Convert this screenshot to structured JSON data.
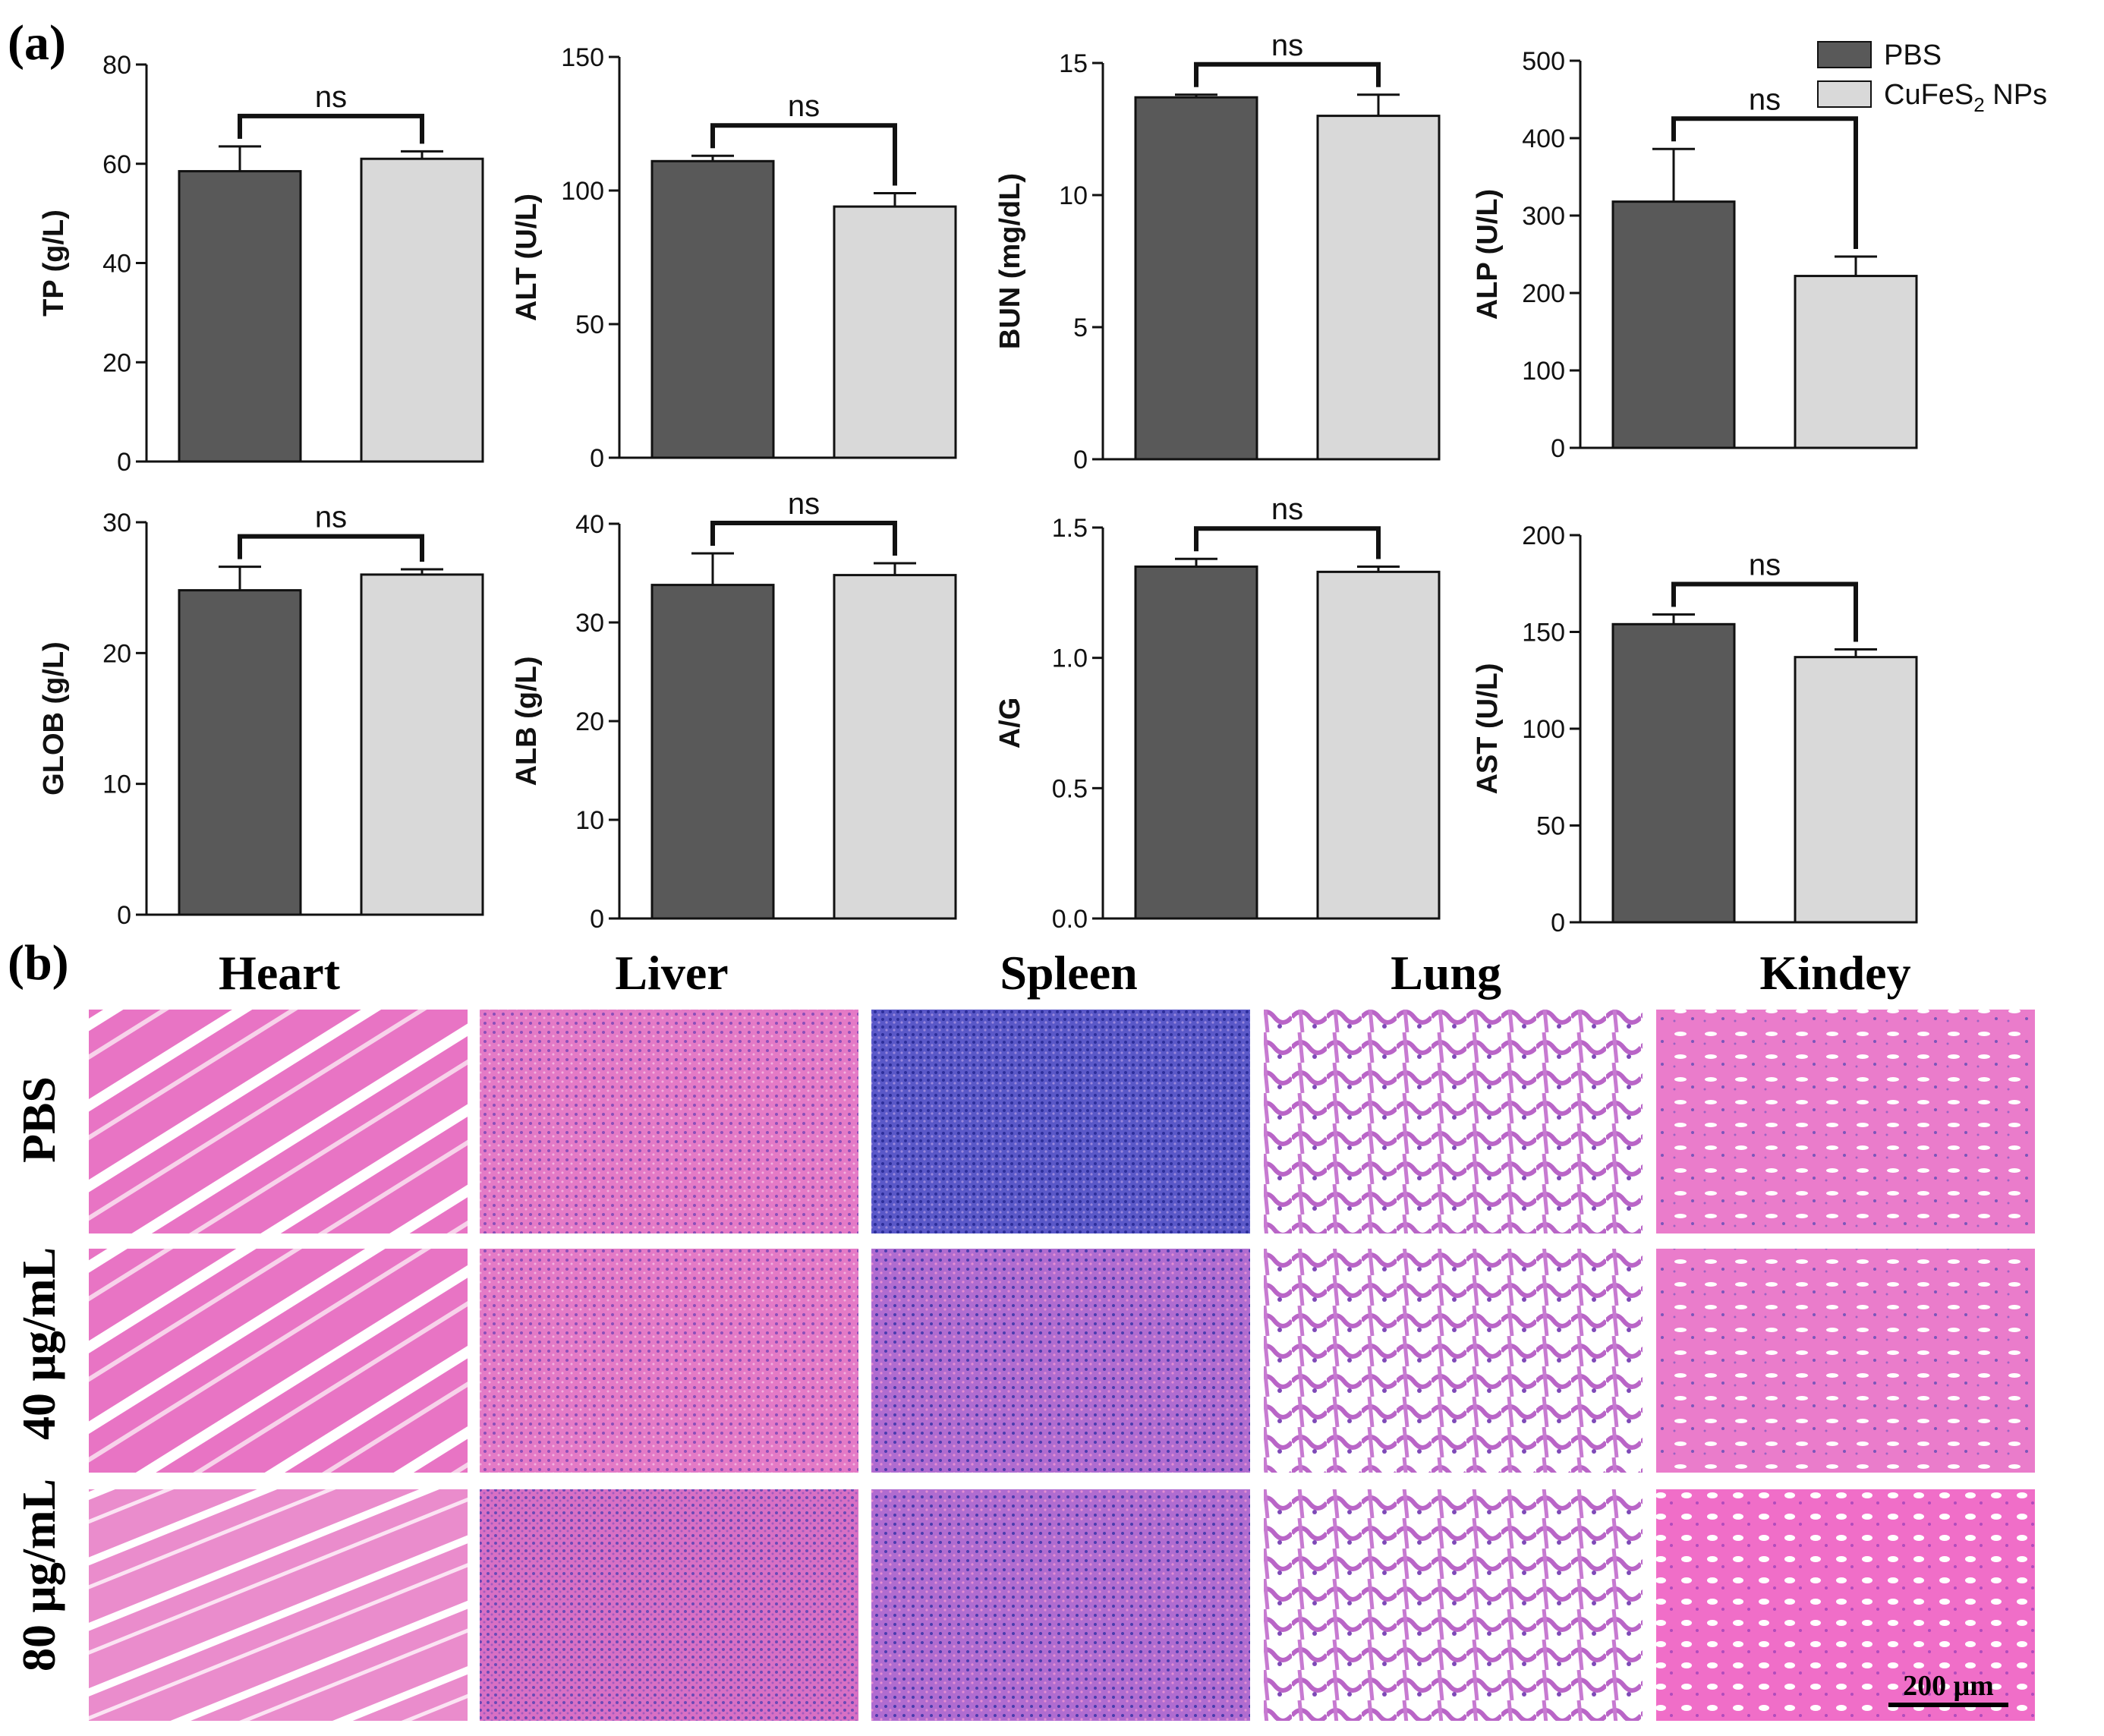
{
  "panel_a_label": "(a)",
  "panel_b_label": "(b)",
  "legend": [
    {
      "label": "PBS",
      "color": "#595959"
    },
    {
      "label_main": "CuFeS",
      "label_sub": "2",
      "label_tail": " NPs",
      "color": "#d9d9d9"
    }
  ],
  "colors": {
    "pbs": "#595959",
    "cufes2": "#d9d9d9",
    "bar_stroke": "#111111"
  },
  "chart_data": [
    {
      "type": "bar",
      "ylabel": "TP (g/L)",
      "ylim": [
        0,
        80
      ],
      "ticks": [
        0,
        20,
        40,
        60,
        80
      ],
      "categories": [
        "PBS",
        "CuFeS2 NPs"
      ],
      "values": [
        58.5,
        61
      ],
      "errors": [
        5,
        1.5
      ],
      "significance": "ns"
    },
    {
      "type": "bar",
      "ylabel": "ALT (U/L)",
      "ylim": [
        0,
        150
      ],
      "ticks": [
        0,
        50,
        100,
        150
      ],
      "categories": [
        "PBS",
        "CuFeS2 NPs"
      ],
      "values": [
        111,
        94
      ],
      "errors": [
        2,
        5
      ],
      "significance": "ns"
    },
    {
      "type": "bar",
      "ylabel": "BUN (mg/dL)",
      "ylim": [
        0,
        15
      ],
      "ticks": [
        0,
        5,
        10,
        15
      ],
      "categories": [
        "PBS",
        "CuFeS2 NPs"
      ],
      "values": [
        13.7,
        13
      ],
      "errors": [
        0.1,
        0.8
      ],
      "significance": "ns"
    },
    {
      "type": "bar",
      "ylabel": "ALP (U/L)",
      "ylim": [
        0,
        500
      ],
      "ticks": [
        0,
        100,
        200,
        300,
        400,
        500
      ],
      "categories": [
        "PBS",
        "CuFeS2 NPs"
      ],
      "values": [
        318,
        222
      ],
      "errors": [
        68,
        25
      ],
      "significance": "ns"
    },
    {
      "type": "bar",
      "ylabel": "GLOB (g/L)",
      "ylim": [
        0,
        30
      ],
      "ticks": [
        0,
        10,
        20,
        30
      ],
      "categories": [
        "PBS",
        "CuFeS2 NPs"
      ],
      "values": [
        24.8,
        26
      ],
      "errors": [
        1.8,
        0.4
      ],
      "significance": "ns"
    },
    {
      "type": "bar",
      "ylabel": "ALB (g/L)",
      "ylim": [
        0,
        40
      ],
      "ticks": [
        0,
        10,
        20,
        30,
        40
      ],
      "categories": [
        "PBS",
        "CuFeS2 NPs"
      ],
      "values": [
        33.8,
        34.8
      ],
      "errors": [
        3.2,
        1.2
      ],
      "significance": "ns"
    },
    {
      "type": "bar",
      "ylabel": "A/G",
      "ylim": [
        0,
        1.5
      ],
      "ticks": [
        "0.0",
        "0.5",
        "1.0",
        "1.5"
      ],
      "categories": [
        "PBS",
        "CuFeS2 NPs"
      ],
      "values": [
        1.35,
        1.33
      ],
      "errors": [
        0.03,
        0.02
      ],
      "significance": "ns"
    },
    {
      "type": "bar",
      "ylabel": "AST (U/L)",
      "ylim": [
        0,
        200
      ],
      "ticks": [
        0,
        50,
        100,
        150,
        200
      ],
      "categories": [
        "PBS",
        "CuFeS2 NPs"
      ],
      "values": [
        154,
        137
      ],
      "errors": [
        5,
        4
      ],
      "significance": "ns"
    }
  ],
  "histology": {
    "organs": [
      "Heart",
      "Liver",
      "Spleen",
      "Lung",
      "Kindey"
    ],
    "rows": [
      "PBS",
      "40 μg/mL",
      "80 μg/mL"
    ],
    "scale_bar": "200 μm"
  }
}
